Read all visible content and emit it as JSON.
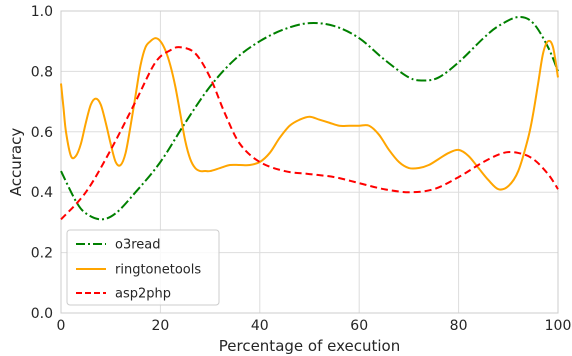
{
  "chart_data": {
    "type": "line",
    "title": "",
    "xlabel": "Percentage of execution",
    "ylabel": "Accuracy",
    "xlim": [
      0,
      100
    ],
    "ylim": [
      0.0,
      1.0
    ],
    "xticks": [
      "0",
      "20",
      "40",
      "60",
      "80",
      "100"
    ],
    "yticks": [
      "0.0",
      "0.2",
      "0.4",
      "0.6",
      "0.8",
      "1.0"
    ],
    "grid": true,
    "legend_position": "lower-left",
    "series": [
      {
        "name": "o3read",
        "color": "#008000",
        "style": "dashdot",
        "x": [
          0,
          3,
          5,
          8,
          11,
          15,
          20,
          25,
          30,
          35,
          40,
          45,
          50,
          55,
          60,
          65,
          70,
          73,
          76,
          80,
          85,
          88,
          92,
          95,
          98,
          100
        ],
        "y": [
          0.47,
          0.37,
          0.33,
          0.31,
          0.33,
          0.4,
          0.5,
          0.63,
          0.75,
          0.84,
          0.9,
          0.94,
          0.96,
          0.95,
          0.91,
          0.84,
          0.78,
          0.77,
          0.78,
          0.83,
          0.91,
          0.95,
          0.98,
          0.96,
          0.88,
          0.8
        ]
      },
      {
        "name": "ringtonetools",
        "color": "#ffa500",
        "style": "solid",
        "x": [
          0,
          0.5,
          1,
          2,
          3,
          4,
          5,
          6,
          7,
          8,
          9,
          10,
          11,
          12,
          13,
          14,
          15,
          16,
          17,
          18,
          19,
          20,
          21,
          22,
          23,
          24,
          25,
          26,
          27,
          28,
          29,
          30,
          32,
          34,
          36,
          38,
          40,
          42,
          44,
          46,
          48,
          50,
          52,
          54,
          56,
          58,
          60,
          62,
          64,
          66,
          68,
          70,
          72,
          74,
          76,
          78,
          80,
          82,
          84,
          86,
          88,
          90,
          92,
          94,
          95,
          96,
          97,
          98,
          99,
          100
        ],
        "y": [
          0.76,
          0.68,
          0.6,
          0.52,
          0.52,
          0.56,
          0.63,
          0.69,
          0.71,
          0.69,
          0.63,
          0.56,
          0.5,
          0.49,
          0.53,
          0.62,
          0.72,
          0.82,
          0.88,
          0.9,
          0.91,
          0.9,
          0.87,
          0.82,
          0.75,
          0.66,
          0.57,
          0.51,
          0.48,
          0.47,
          0.47,
          0.47,
          0.48,
          0.49,
          0.49,
          0.49,
          0.5,
          0.53,
          0.58,
          0.62,
          0.64,
          0.65,
          0.64,
          0.63,
          0.62,
          0.62,
          0.62,
          0.62,
          0.59,
          0.54,
          0.5,
          0.48,
          0.48,
          0.49,
          0.51,
          0.53,
          0.54,
          0.52,
          0.48,
          0.44,
          0.41,
          0.42,
          0.47,
          0.58,
          0.66,
          0.76,
          0.86,
          0.9,
          0.88,
          0.78
        ]
      },
      {
        "name": "asp2php",
        "color": "#ff0000",
        "style": "dashed",
        "x": [
          0,
          5,
          10,
          15,
          19,
          22,
          24,
          27,
          30,
          33,
          36,
          40,
          45,
          50,
          55,
          60,
          65,
          70,
          75,
          80,
          85,
          89,
          92,
          95,
          98,
          100
        ],
        "y": [
          0.31,
          0.4,
          0.54,
          0.7,
          0.83,
          0.87,
          0.88,
          0.86,
          0.78,
          0.66,
          0.56,
          0.5,
          0.47,
          0.46,
          0.45,
          0.43,
          0.41,
          0.4,
          0.41,
          0.45,
          0.5,
          0.53,
          0.53,
          0.51,
          0.46,
          0.41
        ]
      }
    ]
  }
}
